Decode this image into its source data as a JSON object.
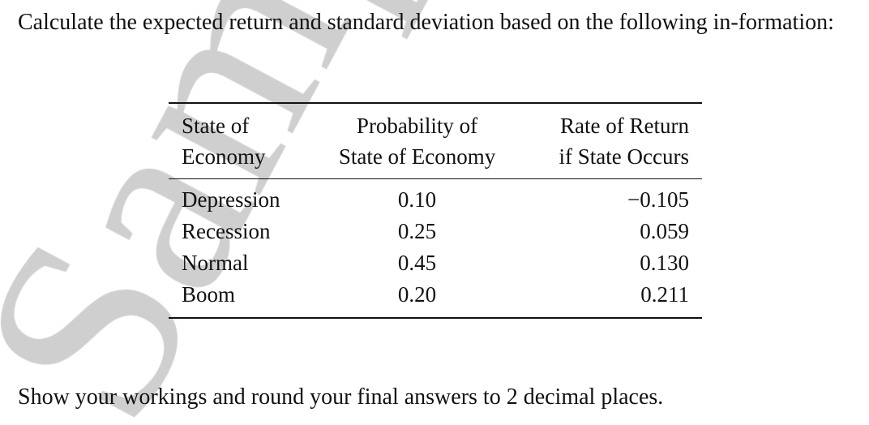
{
  "watermark": "Sample",
  "intro": "Calculate the expected return and standard deviation based on the following in-formation:",
  "table": {
    "headers": [
      [
        "State of",
        "Economy"
      ],
      [
        "Probability of",
        "State of Economy"
      ],
      [
        "Rate of Return",
        "if State Occurs"
      ]
    ],
    "rows": [
      [
        "Depression",
        "0.10",
        "−0.105"
      ],
      [
        "Recession",
        "0.25",
        "0.059"
      ],
      [
        "Normal",
        "0.45",
        "0.130"
      ],
      [
        "Boom",
        "0.20",
        "0.211"
      ]
    ]
  },
  "instruction": "Show your workings and round your final answers to 2 decimal places."
}
